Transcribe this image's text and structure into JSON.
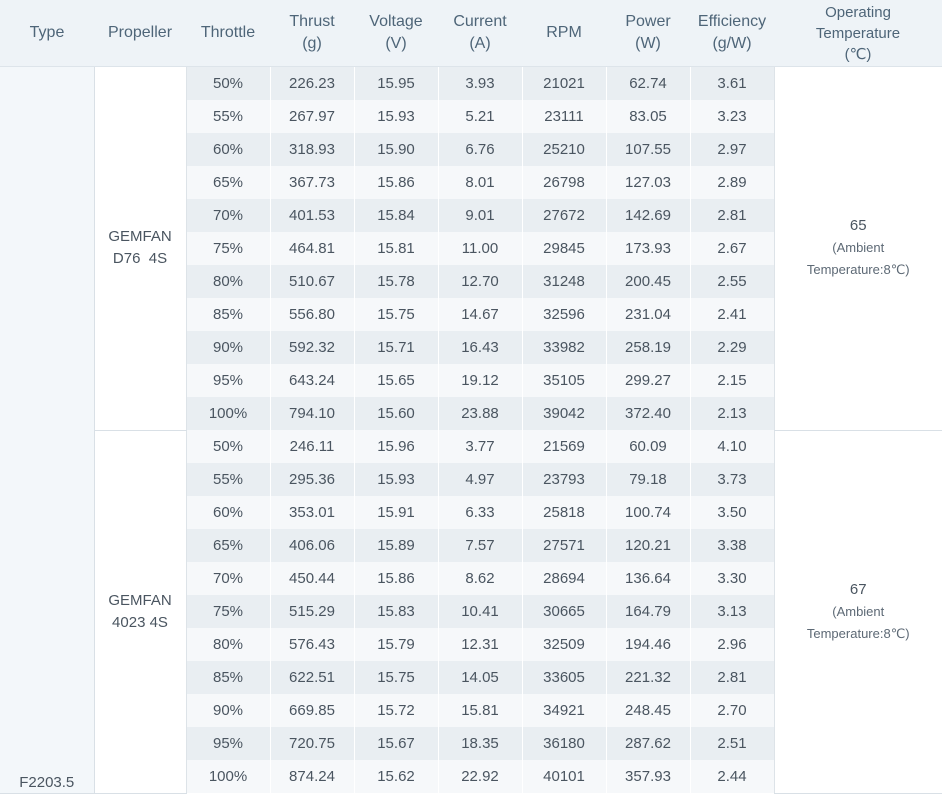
{
  "headers": {
    "type": "Type",
    "propeller": "Propeller",
    "throttle": "Throttle",
    "thrust": [
      "Thrust",
      "(g)"
    ],
    "voltage": [
      "Voltage",
      "(V)"
    ],
    "current": [
      "Current",
      "(A)"
    ],
    "rpm": "RPM",
    "power": [
      "Power",
      "(W)"
    ],
    "efficiency": [
      "Efficiency",
      "(g/W)"
    ],
    "operating_temperature": [
      "Operating",
      "Temperature",
      "(℃)"
    ]
  },
  "motor_type": "F2203.5",
  "groups": [
    {
      "propeller": [
        "GEMFAN",
        "D76  4S"
      ],
      "temperature": "65",
      "temperature_note": [
        "(Ambient",
        "Temperature:8℃)"
      ],
      "rows": [
        [
          "50%",
          "226.23",
          "15.95",
          "3.93",
          "21021",
          "62.74",
          "3.61"
        ],
        [
          "55%",
          "267.97",
          "15.93",
          "5.21",
          "23111",
          "83.05",
          "3.23"
        ],
        [
          "60%",
          "318.93",
          "15.90",
          "6.76",
          "25210",
          "107.55",
          "2.97"
        ],
        [
          "65%",
          "367.73",
          "15.86",
          "8.01",
          "26798",
          "127.03",
          "2.89"
        ],
        [
          "70%",
          "401.53",
          "15.84",
          "9.01",
          "27672",
          "142.69",
          "2.81"
        ],
        [
          "75%",
          "464.81",
          "15.81",
          "11.00",
          "29845",
          "173.93",
          "2.67"
        ],
        [
          "80%",
          "510.67",
          "15.78",
          "12.70",
          "31248",
          "200.45",
          "2.55"
        ],
        [
          "85%",
          "556.80",
          "15.75",
          "14.67",
          "32596",
          "231.04",
          "2.41"
        ],
        [
          "90%",
          "592.32",
          "15.71",
          "16.43",
          "33982",
          "258.19",
          "2.29"
        ],
        [
          "95%",
          "643.24",
          "15.65",
          "19.12",
          "35105",
          "299.27",
          "2.15"
        ],
        [
          "100%",
          "794.10",
          "15.60",
          "23.88",
          "39042",
          "372.40",
          "2.13"
        ]
      ]
    },
    {
      "propeller": [
        "GEMFAN",
        "4023 4S"
      ],
      "temperature": "67",
      "temperature_note": [
        "(Ambient",
        "Temperature:8℃)"
      ],
      "rows": [
        [
          "50%",
          "246.11",
          "15.96",
          "3.77",
          "21569",
          "60.09",
          "4.10"
        ],
        [
          "55%",
          "295.36",
          "15.93",
          "4.97",
          "23793",
          "79.18",
          "3.73"
        ],
        [
          "60%",
          "353.01",
          "15.91",
          "6.33",
          "25818",
          "100.74",
          "3.50"
        ],
        [
          "65%",
          "406.06",
          "15.89",
          "7.57",
          "27571",
          "120.21",
          "3.38"
        ],
        [
          "70%",
          "450.44",
          "15.86",
          "8.62",
          "28694",
          "136.64",
          "3.30"
        ],
        [
          "75%",
          "515.29",
          "15.83",
          "10.41",
          "30665",
          "164.79",
          "3.13"
        ],
        [
          "80%",
          "576.43",
          "15.79",
          "12.31",
          "32509",
          "194.46",
          "2.96"
        ],
        [
          "85%",
          "622.51",
          "15.75",
          "14.05",
          "33605",
          "221.32",
          "2.81"
        ],
        [
          "90%",
          "669.85",
          "15.72",
          "15.81",
          "34921",
          "248.45",
          "2.70"
        ],
        [
          "95%",
          "720.75",
          "15.67",
          "18.35",
          "36180",
          "287.62",
          "2.51"
        ],
        [
          "100%",
          "874.24",
          "15.62",
          "22.92",
          "40101",
          "357.93",
          "2.44"
        ]
      ]
    }
  ],
  "colors": {
    "header_bg": "#eef3f7",
    "row_odd": "#e9eef2",
    "row_even": "#f6f8fa",
    "text": "#4a5560"
  }
}
